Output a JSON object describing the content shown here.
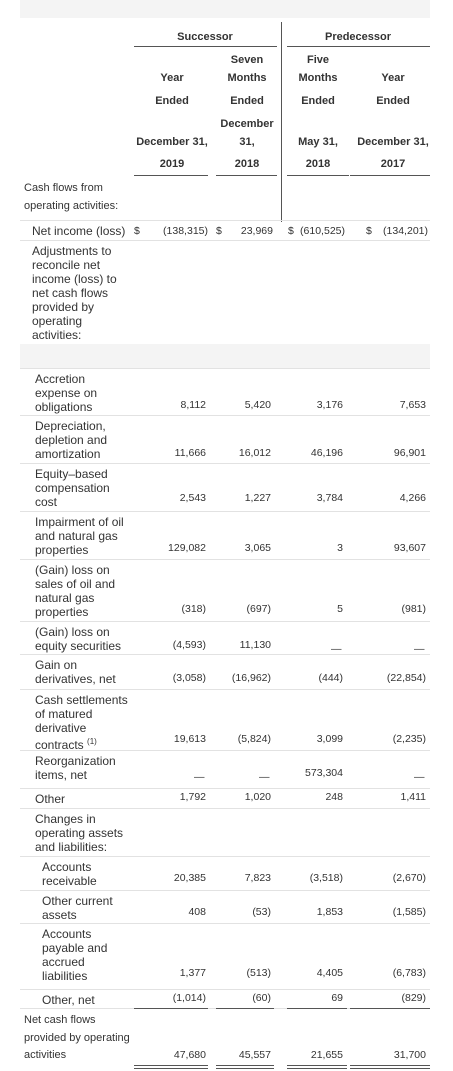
{
  "header": {
    "groups": [
      "Successor",
      "Predecessor"
    ],
    "columns": [
      [
        "Year",
        "Ended",
        "December 31,",
        "2019"
      ],
      [
        "Seven",
        "Months",
        "Ended",
        "December",
        "31,",
        "2018"
      ],
      [
        "Five",
        "Months",
        "Ended",
        "May 31,",
        "2018"
      ],
      [
        "Year",
        "Ended",
        "December 31,",
        "2017"
      ]
    ]
  },
  "rows": [
    {
      "label": "Cash flows from operating activities:"
    },
    {
      "label": "Net income (loss)",
      "currency": "$",
      "values": [
        "(138,315)",
        "23,969",
        "(610,525)",
        "(134,201)"
      ]
    },
    {
      "label": "Adjustments to reconcile net income (loss) to net cash flows provided by operating activities:"
    },
    {
      "label": "Accretion expense on obligations",
      "values": [
        "8,112",
        "5,420",
        "3,176",
        "7,653"
      ]
    },
    {
      "label": "Depreciation, depletion and amortization",
      "values": [
        "11,666",
        "16,012",
        "46,196",
        "96,901"
      ]
    },
    {
      "label": "Equity–based compensation cost",
      "values": [
        "2,543",
        "1,227",
        "3,784",
        "4,266"
      ]
    },
    {
      "label": "Impairment of oil and natural gas properties",
      "values": [
        "129,082",
        "3,065",
        "3",
        "93,607"
      ]
    },
    {
      "label": "(Gain) loss on sales of oil and natural gas properties",
      "values": [
        "(318)",
        "(697)",
        "5",
        "(981)"
      ]
    },
    {
      "label": "(Gain) loss on equity securities",
      "values": [
        "(4,593)",
        "11,130",
        "—",
        "—"
      ]
    },
    {
      "label": "Gain on derivatives, net",
      "values": [
        "(3,058)",
        "(16,962)",
        "(444)",
        "(22,854)"
      ]
    },
    {
      "label": "Cash settlements of matured derivative contracts",
      "note": "(1)",
      "values": [
        "19,613",
        "(5,824)",
        "3,099",
        "(2,235)"
      ]
    },
    {
      "label": "Reorganization items, net",
      "values": [
        "—",
        "—",
        "573,304",
        "—"
      ]
    },
    {
      "label": "Other",
      "values": [
        "1,792",
        "1,020",
        "248",
        "1,411"
      ]
    },
    {
      "label": "Changes in operating assets and liabilities:"
    },
    {
      "label": "Accounts receivable",
      "values": [
        "20,385",
        "7,823",
        "(3,518)",
        "(2,670)"
      ]
    },
    {
      "label": "Other current assets",
      "values": [
        "408",
        "(53)",
        "1,853",
        "(1,585)"
      ]
    },
    {
      "label": "Accounts payable and accrued liabilities",
      "values": [
        "1,377",
        "(513)",
        "4,405",
        "(6,783)"
      ]
    },
    {
      "label": "Other, net",
      "values": [
        "(1,014)",
        "(60)",
        "69",
        "(829)"
      ]
    },
    {
      "label": "Net cash flows provided by operating activities",
      "values": [
        "47,680",
        "45,557",
        "21,655",
        "31,700"
      ]
    }
  ]
}
